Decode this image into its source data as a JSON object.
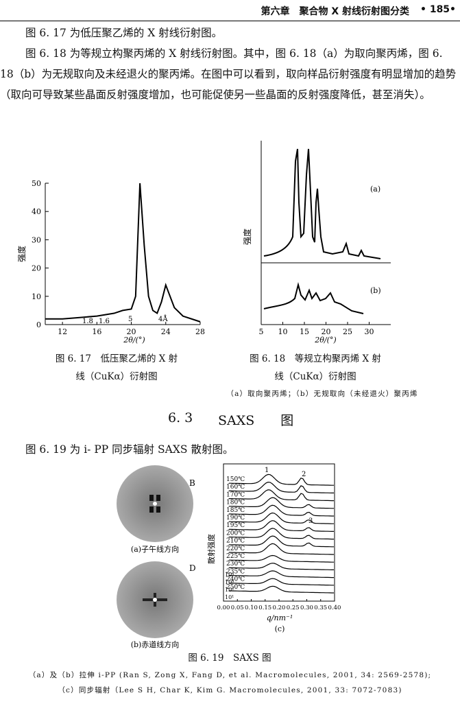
{
  "header": {
    "chapter": "第六章　聚合物 X 射线衍射图分类",
    "page": "• 185•"
  },
  "body": {
    "p1": "图 6. 17 为低压聚乙烯的 X 射线衍射图。",
    "p2": "图 6. 18 为等规立构聚丙烯的 X 射线衍射图。其中，图 6. 18（a）为取向聚丙烯，图 6. 18（b）为无规取向及未经退火的聚丙烯。在图中可以看到，取向样品衍射强度有明显增加的趋势（取向可导致某些晶面反射强度增加，也可能促使另一些晶面的反射强度降低，甚至消失）。",
    "p3": "图 6. 19 为 i- PP 同步辐射 SAXS 散射图。"
  },
  "section": {
    "number": "6. 3",
    "title": "SAXS　　图"
  },
  "fig617": {
    "ylabel": "强度",
    "xlabel": "2θ/(°)",
    "yticks": [
      "50",
      "40",
      "30",
      "20",
      "10",
      "0"
    ],
    "xticks": [
      "12",
      "16",
      "20",
      "24",
      "28"
    ],
    "annotations": [
      "1.8",
      "1.6",
      "5",
      "4Å"
    ],
    "caption1": "图 6. 17　低压聚乙烯的 X 射",
    "caption2": "线（CuKα）衍射图",
    "chart_data": {
      "type": "line",
      "x": [
        10,
        12,
        14,
        16,
        18,
        19,
        20,
        20.5,
        21,
        21.5,
        22,
        22.5,
        23,
        23.5,
        24,
        25,
        26,
        27,
        28
      ],
      "values": [
        2,
        2,
        2.5,
        3,
        4,
        5,
        5.5,
        10,
        50,
        28,
        10,
        5,
        4,
        8,
        14,
        6,
        3,
        2,
        1
      ],
      "xlim": [
        10,
        28
      ],
      "ylim": [
        0,
        50
      ]
    }
  },
  "fig618": {
    "ylabel": "强度",
    "xlabel": "2θ/(°)",
    "xticks": [
      "5",
      "10",
      "15",
      "20",
      "25",
      "30"
    ],
    "label_a": "(a)",
    "label_b": "(b)",
    "caption1": "图 6. 18　等规立构聚丙烯 X 射",
    "caption2": "线（CuKα）衍射图",
    "note": "（a）取向聚丙烯；（b）无规取向（未经退火）聚丙烯"
  },
  "fig619": {
    "label_B": "B",
    "label_D": "D",
    "caption_a": "(a)子午线方向",
    "caption_b": "(b)赤道线方向",
    "ylabel": "散射强度",
    "xlabel": "q/nm⁻¹",
    "label_c": "(c)",
    "temps": [
      "150℃",
      "160℃",
      "170℃",
      "180℃",
      "185℃",
      "190℃",
      "195℃",
      "200℃",
      "210℃",
      "220℃",
      "225℃",
      "230℃",
      "235℃",
      "240℃",
      "250℃"
    ],
    "powers": [
      "10⁴",
      "10³",
      "10²",
      "10¹"
    ],
    "peaks": [
      "1",
      "2",
      "3"
    ],
    "xticks": [
      "0.00",
      "0.05",
      "0.10",
      "0.15",
      "0.20",
      "0.25",
      "0.30",
      "0.35",
      "0.40"
    ],
    "caption": "图 6. 19　SAXS 图",
    "ref1": "（a）及（b）拉伸 i-PP (Ran S, Zong X, Fang D, et al. Macromolecules, 2001, 34: 2569-2578);",
    "ref2": "（c）同步辐射（Lee S H, Char K, Kim G. Macromolecules, 2001, 33: 7072-7083)"
  }
}
